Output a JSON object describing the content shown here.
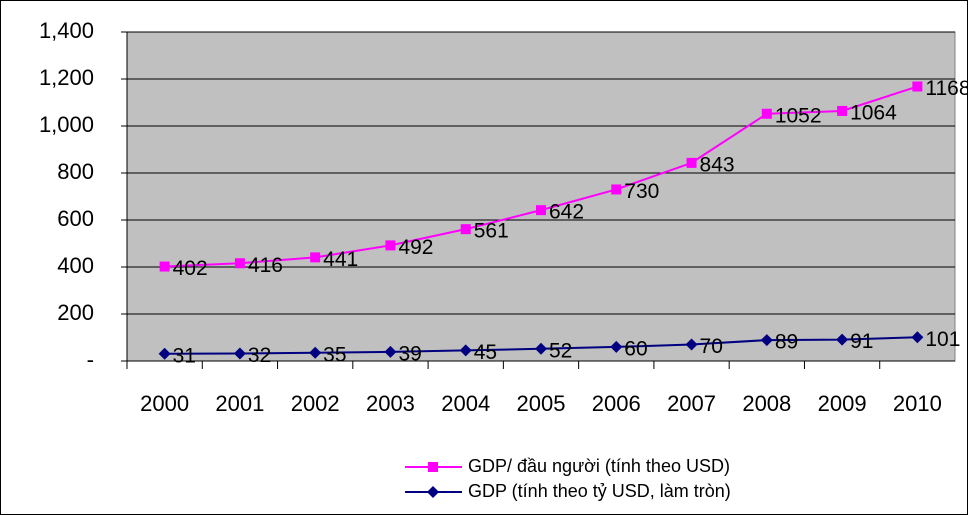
{
  "chart_data": {
    "type": "line",
    "categories": [
      "2000",
      "2001",
      "2002",
      "2003",
      "2004",
      "2005",
      "2006",
      "2007",
      "2008",
      "2009",
      "2010"
    ],
    "series": [
      {
        "name": "GDP/ đầu người (tính theo USD)",
        "color": "#ff00ff",
        "marker": "square",
        "values": [
          402,
          416,
          441,
          492,
          561,
          642,
          730,
          843,
          1052,
          1064,
          1168
        ]
      },
      {
        "name": "GDP (tính theo tỷ USD, làm tròn)",
        "color": "#000080",
        "marker": "diamond",
        "values": [
          31,
          32,
          35,
          39,
          45,
          52,
          60,
          70,
          89,
          91,
          101
        ]
      }
    ],
    "ylim": [
      0,
      1400
    ],
    "yticks": [
      {
        "value": 0,
        "label": "-"
      },
      200,
      400,
      600,
      800,
      {
        "value": 1000,
        "label": "1,000"
      },
      {
        "value": 1200,
        "label": "1,200"
      },
      {
        "value": 1400,
        "label": "1,400"
      }
    ],
    "grid": true,
    "legend": "bottom",
    "plot_background": "#c0c0c0"
  }
}
